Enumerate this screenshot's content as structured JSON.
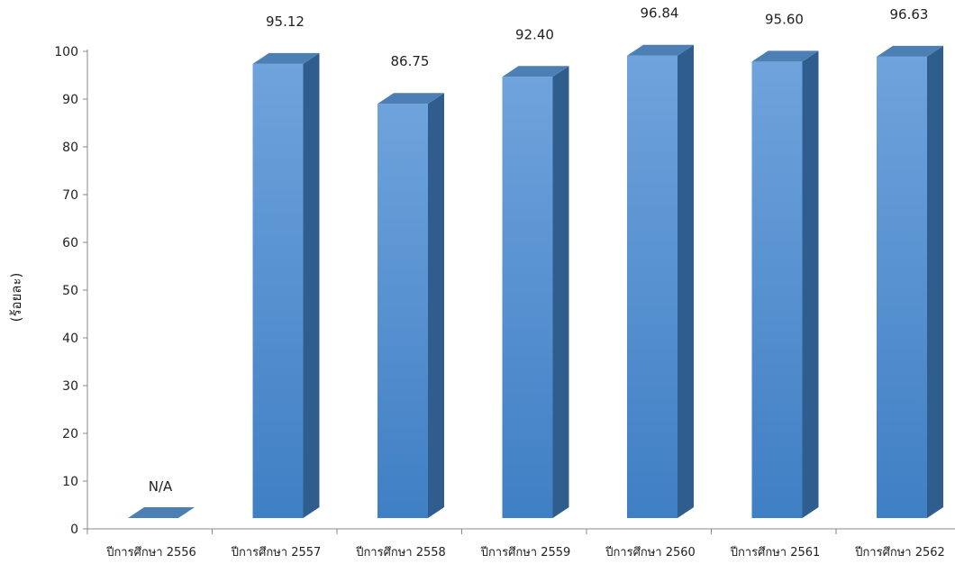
{
  "chart_data": {
    "type": "bar",
    "title": "",
    "xlabel": "",
    "ylabel": "(ร้อยละ)",
    "ylim": [
      0,
      100
    ],
    "yticks": [
      0,
      10,
      20,
      30,
      40,
      50,
      60,
      70,
      80,
      90,
      100
    ],
    "categories": [
      "ปีการศึกษา 2556",
      "ปีการศึกษา 2557",
      "ปีการศึกษา 2558",
      "ปีการศึกษา 2559",
      "ปีการศึกษา 2560",
      "ปีการศึกษา 2561",
      "ปีการศึกษา 2562"
    ],
    "values": [
      0,
      95.12,
      86.75,
      92.4,
      96.84,
      95.6,
      96.63
    ],
    "data_labels": [
      "N/A",
      "95.12",
      "86.75",
      "92.40",
      "96.84",
      "95.60",
      "96.63"
    ],
    "grid": false,
    "bar_style": "3d",
    "colors": {
      "front_top": "#6fa3dc",
      "front_bottom": "#3f7fc4",
      "side": "#2f5d8e",
      "top": "#4c7fb3"
    }
  }
}
